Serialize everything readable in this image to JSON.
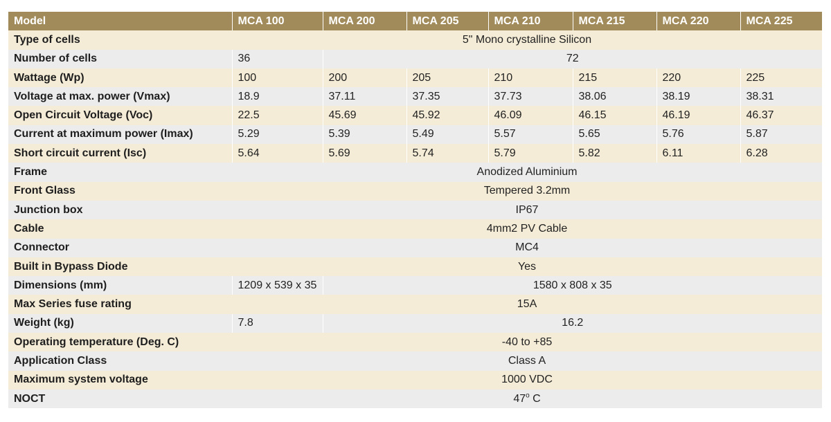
{
  "columns": [
    "Model",
    "MCA 100",
    "MCA 200",
    "MCA 205",
    "MCA 210",
    "MCA 215",
    "MCA 220",
    "MCA 225"
  ],
  "rows": {
    "type_of_cells": {
      "label": "Type of cells",
      "value": "5\" Mono crystalline Silicon"
    },
    "number_of_cells": {
      "label": "Number of cells",
      "mca100": "36",
      "others": "72"
    },
    "wattage": {
      "label": "Wattage (Wp)",
      "values": [
        "100",
        "200",
        "205",
        "210",
        "215",
        "220",
        "225"
      ]
    },
    "vmax": {
      "label": "Voltage at max. power (Vmax)",
      "values": [
        "18.9",
        "37.11",
        "37.35",
        "37.73",
        "38.06",
        "38.19",
        "38.31"
      ]
    },
    "voc": {
      "label": "Open Circuit Voltage (Voc)",
      "values": [
        "22.5",
        "45.69",
        "45.92",
        "46.09",
        "46.15",
        "46.19",
        "46.37"
      ]
    },
    "imax": {
      "label": "Current at maximum power (Imax)",
      "values": [
        "5.29",
        "5.39",
        "5.49",
        "5.57",
        "5.65",
        "5.76",
        "5.87"
      ]
    },
    "isc": {
      "label": "Short circuit current (Isc)",
      "values": [
        "5.64",
        "5.69",
        "5.74",
        "5.79",
        "5.82",
        "6.11",
        "6.28"
      ]
    },
    "frame": {
      "label": "Frame",
      "value": "Anodized Aluminium"
    },
    "front_glass": {
      "label": "Front Glass",
      "value": "Tempered 3.2mm"
    },
    "junction_box": {
      "label": "Junction box",
      "value": "IP67"
    },
    "cable": {
      "label": "Cable",
      "value": "4mm2 PV Cable"
    },
    "connector": {
      "label": "Connector",
      "value": "MC4"
    },
    "bypass_diode": {
      "label": "Built in Bypass Diode",
      "value": "Yes"
    },
    "dimensions": {
      "label": "Dimensions (mm)",
      "mca100": "1209 x 539 x 35",
      "others": "1580 x 808 x 35"
    },
    "fuse_rating": {
      "label": "Max Series fuse rating",
      "value": "15A"
    },
    "weight": {
      "label": "Weight (kg)",
      "mca100": "7.8",
      "others": "16.2"
    },
    "operating_temp": {
      "label": "Operating temperature (Deg. C)",
      "value": "-40 to +85"
    },
    "application_class": {
      "label": "Application Class",
      "value": "Class A"
    },
    "max_system_voltage": {
      "label": "Maximum system voltage",
      "value": "1000 VDC"
    },
    "noct": {
      "label": "NOCT",
      "value": "47",
      "sup": "o",
      "unit": " C"
    }
  }
}
